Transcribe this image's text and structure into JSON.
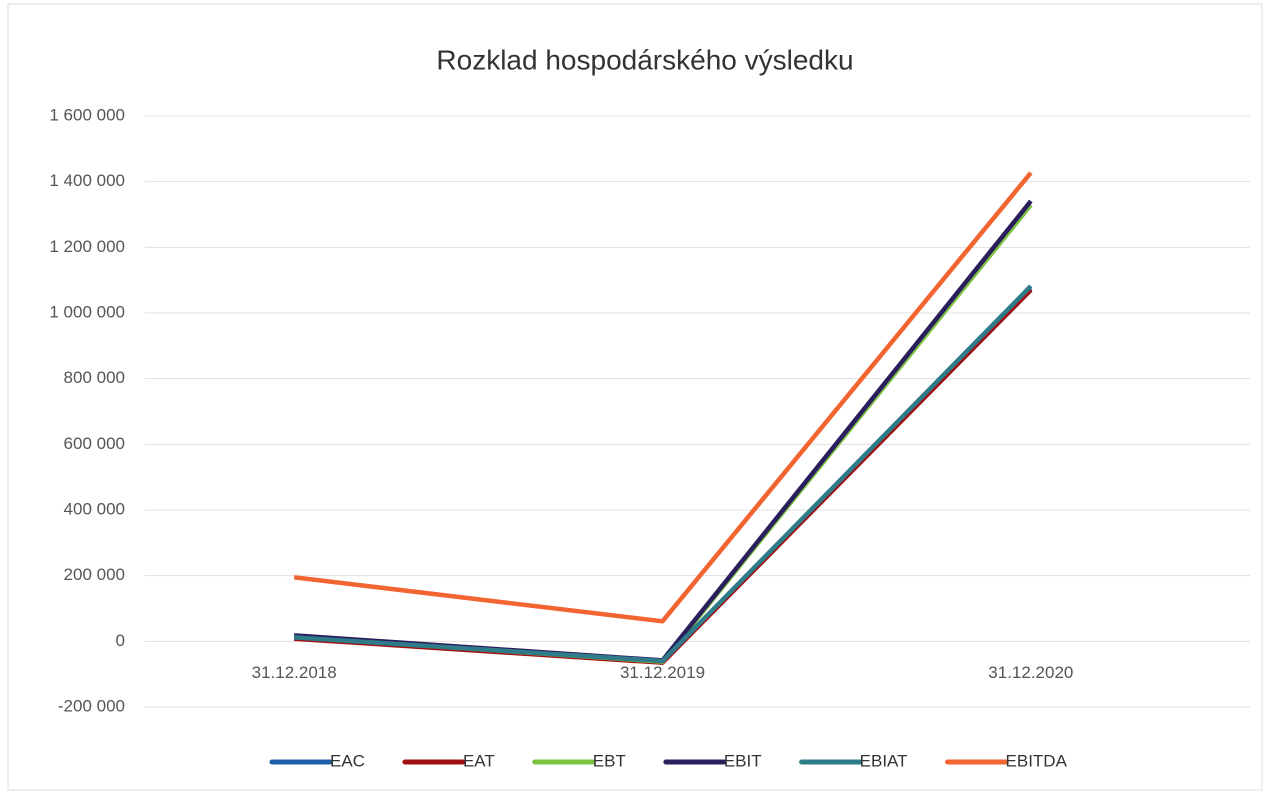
{
  "chart_data": {
    "type": "line",
    "title": "Rozklad hospodárského výsledku",
    "categories": [
      "31.12.2018",
      "31.12.2019",
      "31.12.2020"
    ],
    "series": [
      {
        "name": "EAC",
        "color": "#1f5fa8",
        "values": [
          10000,
          -63000,
          1075000
        ]
      },
      {
        "name": "EAT",
        "color": "#a01010",
        "values": [
          8000,
          -65000,
          1070000
        ]
      },
      {
        "name": "EBT",
        "color": "#7cc242",
        "values": [
          14000,
          -62000,
          1329000
        ]
      },
      {
        "name": "EBIT",
        "color": "#2a1f5c",
        "values": [
          18000,
          -58000,
          1341000
        ]
      },
      {
        "name": "EBIAT",
        "color": "#2e7b8a",
        "values": [
          12000,
          -60000,
          1082000
        ]
      },
      {
        "name": "EBITDA",
        "color": "#f26430",
        "values": [
          195000,
          61000,
          1427000
        ]
      }
    ],
    "ylim": [
      -200000,
      1600000
    ],
    "yticks": [
      {
        "value": -200000,
        "label": "-200 000"
      },
      0,
      {
        "value": 200000,
        "label": "200 000"
      },
      {
        "value": 400000,
        "label": "400 000"
      },
      {
        "value": 600000,
        "label": "600 000"
      },
      {
        "value": 800000,
        "label": "800 000"
      },
      {
        "value": 1000000,
        "label": "1 000 000"
      },
      {
        "value": 1200000,
        "label": "1 200 000"
      },
      {
        "value": 1400000,
        "label": "1 400 000"
      },
      {
        "value": 1600000,
        "label": "1 600 000"
      }
    ],
    "grid": true,
    "legend": "bottom"
  }
}
